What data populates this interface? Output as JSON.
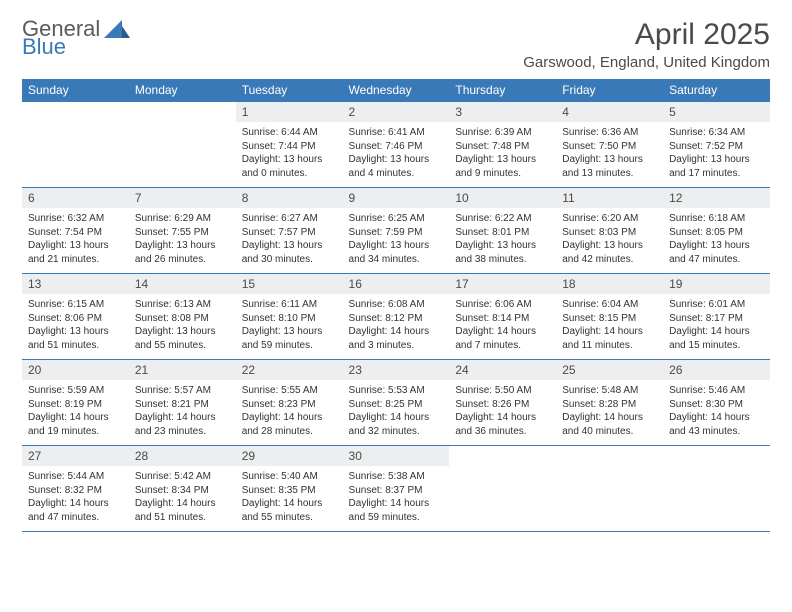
{
  "logo": {
    "top": "General",
    "bottom": "Blue",
    "mark_color": "#3a79b7"
  },
  "title": "April 2025",
  "location": "Garswood, England, United Kingdom",
  "colors": {
    "header_bg": "#3a79b7",
    "header_fg": "#ffffff",
    "daynum_bg": "#eceef0",
    "text": "#333333",
    "rule": "#3a79b7"
  },
  "day_headers": [
    "Sunday",
    "Monday",
    "Tuesday",
    "Wednesday",
    "Thursday",
    "Friday",
    "Saturday"
  ],
  "weeks": [
    [
      null,
      null,
      {
        "n": "1",
        "sr": "6:44 AM",
        "ss": "7:44 PM",
        "dl": "13 hours and 0 minutes."
      },
      {
        "n": "2",
        "sr": "6:41 AM",
        "ss": "7:46 PM",
        "dl": "13 hours and 4 minutes."
      },
      {
        "n": "3",
        "sr": "6:39 AM",
        "ss": "7:48 PM",
        "dl": "13 hours and 9 minutes."
      },
      {
        "n": "4",
        "sr": "6:36 AM",
        "ss": "7:50 PM",
        "dl": "13 hours and 13 minutes."
      },
      {
        "n": "5",
        "sr": "6:34 AM",
        "ss": "7:52 PM",
        "dl": "13 hours and 17 minutes."
      }
    ],
    [
      {
        "n": "6",
        "sr": "6:32 AM",
        "ss": "7:54 PM",
        "dl": "13 hours and 21 minutes."
      },
      {
        "n": "7",
        "sr": "6:29 AM",
        "ss": "7:55 PM",
        "dl": "13 hours and 26 minutes."
      },
      {
        "n": "8",
        "sr": "6:27 AM",
        "ss": "7:57 PM",
        "dl": "13 hours and 30 minutes."
      },
      {
        "n": "9",
        "sr": "6:25 AM",
        "ss": "7:59 PM",
        "dl": "13 hours and 34 minutes."
      },
      {
        "n": "10",
        "sr": "6:22 AM",
        "ss": "8:01 PM",
        "dl": "13 hours and 38 minutes."
      },
      {
        "n": "11",
        "sr": "6:20 AM",
        "ss": "8:03 PM",
        "dl": "13 hours and 42 minutes."
      },
      {
        "n": "12",
        "sr": "6:18 AM",
        "ss": "8:05 PM",
        "dl": "13 hours and 47 minutes."
      }
    ],
    [
      {
        "n": "13",
        "sr": "6:15 AM",
        "ss": "8:06 PM",
        "dl": "13 hours and 51 minutes."
      },
      {
        "n": "14",
        "sr": "6:13 AM",
        "ss": "8:08 PM",
        "dl": "13 hours and 55 minutes."
      },
      {
        "n": "15",
        "sr": "6:11 AM",
        "ss": "8:10 PM",
        "dl": "13 hours and 59 minutes."
      },
      {
        "n": "16",
        "sr": "6:08 AM",
        "ss": "8:12 PM",
        "dl": "14 hours and 3 minutes."
      },
      {
        "n": "17",
        "sr": "6:06 AM",
        "ss": "8:14 PM",
        "dl": "14 hours and 7 minutes."
      },
      {
        "n": "18",
        "sr": "6:04 AM",
        "ss": "8:15 PM",
        "dl": "14 hours and 11 minutes."
      },
      {
        "n": "19",
        "sr": "6:01 AM",
        "ss": "8:17 PM",
        "dl": "14 hours and 15 minutes."
      }
    ],
    [
      {
        "n": "20",
        "sr": "5:59 AM",
        "ss": "8:19 PM",
        "dl": "14 hours and 19 minutes."
      },
      {
        "n": "21",
        "sr": "5:57 AM",
        "ss": "8:21 PM",
        "dl": "14 hours and 23 minutes."
      },
      {
        "n": "22",
        "sr": "5:55 AM",
        "ss": "8:23 PM",
        "dl": "14 hours and 28 minutes."
      },
      {
        "n": "23",
        "sr": "5:53 AM",
        "ss": "8:25 PM",
        "dl": "14 hours and 32 minutes."
      },
      {
        "n": "24",
        "sr": "5:50 AM",
        "ss": "8:26 PM",
        "dl": "14 hours and 36 minutes."
      },
      {
        "n": "25",
        "sr": "5:48 AM",
        "ss": "8:28 PM",
        "dl": "14 hours and 40 minutes."
      },
      {
        "n": "26",
        "sr": "5:46 AM",
        "ss": "8:30 PM",
        "dl": "14 hours and 43 minutes."
      }
    ],
    [
      {
        "n": "27",
        "sr": "5:44 AM",
        "ss": "8:32 PM",
        "dl": "14 hours and 47 minutes."
      },
      {
        "n": "28",
        "sr": "5:42 AM",
        "ss": "8:34 PM",
        "dl": "14 hours and 51 minutes."
      },
      {
        "n": "29",
        "sr": "5:40 AM",
        "ss": "8:35 PM",
        "dl": "14 hours and 55 minutes."
      },
      {
        "n": "30",
        "sr": "5:38 AM",
        "ss": "8:37 PM",
        "dl": "14 hours and 59 minutes."
      },
      null,
      null,
      null
    ]
  ],
  "labels": {
    "sunrise": "Sunrise:",
    "sunset": "Sunset:",
    "daylight": "Daylight:"
  }
}
